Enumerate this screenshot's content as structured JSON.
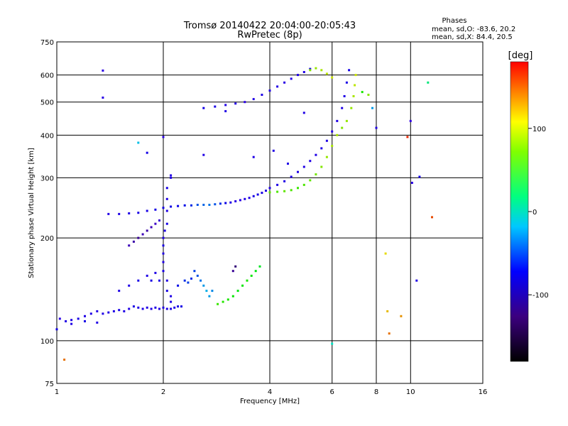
{
  "chart_data": {
    "type": "scatter",
    "title": "Tromsø 20140422 20:04:00-20:05:43",
    "subtitle": "RwPretec (8p)",
    "xlabel": "Frequency [MHz]",
    "ylabel": "Stationary phase Virtual Height [km]",
    "x_scale": "log2",
    "y_scale": "log",
    "xlim": [
      1,
      16
    ],
    "ylim": [
      75,
      750
    ],
    "x_ticks": [
      1,
      2,
      4,
      6,
      8,
      10,
      16
    ],
    "x_tick_labels": [
      "1",
      "2",
      "4",
      "6",
      "8",
      "10",
      "16"
    ],
    "y_ticks": [
      75,
      100,
      200,
      300,
      400,
      500,
      600,
      750
    ],
    "y_tick_labels": [
      "75",
      "100",
      "200",
      "300",
      "400",
      "500",
      "600",
      "750"
    ],
    "grid": true,
    "phases_title": "Phases",
    "phases_lines": [
      "mean, sd,O:  -83.6, 20.2",
      "mean, sd,X:  84.4, 20.5"
    ],
    "colorbar": {
      "label": "[deg]",
      "range": [
        -180,
        180
      ],
      "ticks": [
        100,
        0,
        -100
      ],
      "tick_labels": [
        "100",
        "0",
        "-100"
      ]
    },
    "series": [
      {
        "points": [
          [
            1.02,
            116,
            -110
          ],
          [
            1.06,
            114,
            -105
          ],
          [
            1.1,
            115,
            -100
          ],
          [
            1.15,
            116,
            -95
          ],
          [
            1.2,
            118,
            -100
          ],
          [
            1.25,
            120,
            -100
          ],
          [
            1.3,
            122,
            -105
          ],
          [
            1.35,
            120,
            -100
          ],
          [
            1.4,
            121,
            -105
          ],
          [
            1.45,
            122,
            -100
          ],
          [
            1.5,
            123,
            -95
          ],
          [
            1.55,
            122,
            -100
          ],
          [
            1.6,
            124,
            -100
          ],
          [
            1.65,
            126,
            -95
          ],
          [
            1.7,
            125,
            -100
          ],
          [
            1.75,
            124,
            -100
          ],
          [
            1.8,
            125,
            -105
          ],
          [
            1.85,
            124,
            -100
          ],
          [
            1.9,
            125,
            -100
          ],
          [
            1.95,
            124,
            -105
          ],
          [
            2.0,
            125,
            -100
          ],
          [
            2.05,
            124,
            -100
          ],
          [
            2.1,
            124,
            -95
          ],
          [
            2.15,
            125,
            -100
          ],
          [
            2.2,
            126,
            -95
          ],
          [
            2.25,
            126,
            -90
          ]
        ]
      },
      {
        "points": [
          [
            1.5,
            140,
            -100
          ],
          [
            1.6,
            145,
            -100
          ],
          [
            1.7,
            150,
            -95
          ],
          [
            1.8,
            155,
            -100
          ],
          [
            1.85,
            150,
            -95
          ],
          [
            1.9,
            158,
            -100
          ],
          [
            1.95,
            150,
            -100
          ],
          [
            2.0,
            160,
            -95
          ],
          [
            2.0,
            170,
            -100
          ],
          [
            2.0,
            180,
            -100
          ],
          [
            2.0,
            190,
            -95
          ],
          [
            2.0,
            200,
            -100
          ],
          [
            2.02,
            210,
            -100
          ],
          [
            2.05,
            220,
            -95
          ],
          [
            2.05,
            240,
            -100
          ],
          [
            2.05,
            260,
            -100
          ],
          [
            2.05,
            280,
            -95
          ],
          [
            2.1,
            300,
            -100
          ],
          [
            2.05,
            150,
            -100
          ],
          [
            2.05,
            140,
            -95
          ],
          [
            2.1,
            135,
            -100
          ],
          [
            2.1,
            130,
            -100
          ]
        ]
      },
      {
        "points": [
          [
            2.2,
            145,
            -70
          ],
          [
            2.3,
            150,
            -60
          ],
          [
            2.35,
            148,
            -55
          ],
          [
            2.4,
            152,
            -60
          ],
          [
            2.45,
            160,
            -55
          ],
          [
            2.5,
            155,
            -50
          ],
          [
            2.55,
            150,
            -40
          ],
          [
            2.6,
            145,
            -30
          ],
          [
            2.65,
            140,
            -25
          ],
          [
            2.7,
            135,
            -30
          ],
          [
            2.75,
            140,
            -35
          ]
        ]
      },
      {
        "points": [
          [
            2.85,
            128,
            70
          ],
          [
            2.95,
            130,
            65
          ],
          [
            3.05,
            132,
            60
          ],
          [
            3.15,
            135,
            55
          ],
          [
            3.25,
            140,
            50
          ],
          [
            3.35,
            145,
            55
          ],
          [
            3.45,
            150,
            60
          ],
          [
            3.55,
            155,
            55
          ],
          [
            3.65,
            160,
            50
          ],
          [
            3.75,
            165,
            45
          ],
          [
            3.15,
            160,
            -150
          ],
          [
            3.2,
            165,
            -160
          ]
        ]
      },
      {
        "points": [
          [
            1.4,
            235,
            -105
          ],
          [
            1.5,
            235,
            -100
          ],
          [
            1.6,
            236,
            -100
          ],
          [
            1.7,
            237,
            -95
          ],
          [
            1.8,
            240,
            -95
          ],
          [
            1.9,
            242,
            -90
          ],
          [
            2.0,
            245,
            -90
          ],
          [
            2.1,
            247,
            -85
          ],
          [
            2.2,
            248,
            -80
          ],
          [
            2.3,
            249,
            -70
          ],
          [
            2.4,
            249,
            -60
          ],
          [
            2.5,
            250,
            -50
          ],
          [
            2.6,
            250,
            -45
          ],
          [
            2.7,
            250,
            -40
          ],
          [
            2.8,
            251,
            -50
          ],
          [
            2.9,
            252,
            -60
          ],
          [
            3.0,
            253,
            -80
          ],
          [
            3.1,
            254,
            -100
          ],
          [
            3.2,
            256,
            -110
          ],
          [
            3.3,
            258,
            -110
          ],
          [
            3.4,
            260,
            -105
          ],
          [
            3.5,
            262,
            -100
          ],
          [
            3.6,
            265,
            -95
          ],
          [
            3.7,
            268,
            -90
          ],
          [
            3.8,
            271,
            -95
          ],
          [
            3.9,
            275,
            -100
          ],
          [
            4.0,
            280,
            -100
          ],
          [
            4.2,
            286,
            -100
          ],
          [
            4.4,
            293,
            -100
          ],
          [
            4.6,
            302,
            -100
          ],
          [
            4.8,
            312,
            -100
          ],
          [
            5.0,
            323,
            -100
          ],
          [
            5.2,
            336,
            -100
          ],
          [
            5.4,
            350,
            -100
          ],
          [
            5.6,
            366,
            -100
          ],
          [
            5.8,
            385,
            -100
          ],
          [
            6.0,
            410,
            -105
          ],
          [
            6.2,
            440,
            -100
          ],
          [
            6.4,
            480,
            -100
          ],
          [
            6.5,
            520,
            -100
          ],
          [
            6.6,
            570,
            -95
          ],
          [
            6.7,
            620,
            -90
          ]
        ]
      },
      {
        "points": [
          [
            1.6,
            190,
            -140
          ],
          [
            1.65,
            195,
            -145
          ],
          [
            1.7,
            200,
            -150
          ],
          [
            1.75,
            205,
            -140
          ],
          [
            1.8,
            210,
            -145
          ],
          [
            1.85,
            215,
            -140
          ],
          [
            1.9,
            220,
            -135
          ],
          [
            1.95,
            225,
            -130
          ]
        ]
      },
      {
        "points": [
          [
            4.0,
            272,
            80
          ],
          [
            4.2,
            273,
            75
          ],
          [
            4.4,
            274,
            80
          ],
          [
            4.6,
            276,
            75
          ],
          [
            4.8,
            280,
            70
          ],
          [
            5.0,
            286,
            75
          ],
          [
            5.2,
            295,
            80
          ],
          [
            5.4,
            307,
            85
          ],
          [
            5.6,
            323,
            90
          ],
          [
            5.8,
            345,
            95
          ],
          [
            6.0,
            372,
            100
          ],
          [
            6.2,
            400,
            100
          ],
          [
            6.4,
            420,
            90
          ],
          [
            6.6,
            440,
            95
          ],
          [
            6.8,
            480,
            95
          ],
          [
            6.9,
            520,
            100
          ],
          [
            6.95,
            560,
            105
          ],
          [
            7.0,
            600,
            110
          ]
        ]
      },
      {
        "points": [
          [
            2.6,
            480,
            -90
          ],
          [
            2.8,
            485,
            -95
          ],
          [
            3.0,
            490,
            -100
          ],
          [
            3.2,
            495,
            -105
          ],
          [
            3.4,
            500,
            -110
          ],
          [
            3.6,
            510,
            -105
          ],
          [
            3.8,
            525,
            -100
          ],
          [
            4.0,
            540,
            -100
          ],
          [
            4.2,
            555,
            -105
          ],
          [
            4.4,
            570,
            -110
          ],
          [
            4.6,
            585,
            -105
          ],
          [
            4.8,
            600,
            -100
          ],
          [
            5.0,
            612,
            -100
          ],
          [
            5.2,
            625,
            -95
          ]
        ]
      },
      {
        "points": [
          [
            5.2,
            620,
            90
          ],
          [
            5.4,
            628,
            95
          ],
          [
            5.6,
            620,
            100
          ],
          [
            5.8,
            605,
            105
          ],
          [
            6.0,
            590,
            110
          ]
        ]
      },
      {
        "points": [
          [
            1.0,
            108,
            -90
          ],
          [
            1.1,
            112,
            -100
          ],
          [
            1.2,
            114,
            -95
          ],
          [
            1.3,
            113,
            -100
          ],
          [
            1.35,
            618,
            -110
          ],
          [
            1.35,
            515,
            -110
          ],
          [
            1.7,
            380,
            -20
          ],
          [
            1.8,
            355,
            -90
          ],
          [
            2.0,
            395,
            -110
          ],
          [
            2.1,
            305,
            -100
          ],
          [
            2.6,
            350,
            -100
          ],
          [
            3.0,
            470,
            -100
          ],
          [
            3.6,
            345,
            -100
          ],
          [
            4.1,
            360,
            -100
          ],
          [
            4.5,
            330,
            -100
          ],
          [
            5.0,
            465,
            -100
          ],
          [
            7.3,
            535,
            60
          ],
          [
            7.6,
            525,
            90
          ],
          [
            7.8,
            480,
            -30
          ],
          [
            8.0,
            420,
            -100
          ],
          [
            8.5,
            180,
            120
          ],
          [
            8.6,
            122,
            130
          ],
          [
            8.7,
            105,
            150
          ],
          [
            9.8,
            395,
            170
          ],
          [
            10.0,
            440,
            -120
          ],
          [
            10.1,
            290,
            -110
          ],
          [
            10.4,
            150,
            -100
          ],
          [
            10.6,
            302,
            -90
          ],
          [
            11.2,
            570,
            20
          ],
          [
            11.5,
            230,
            160
          ],
          [
            1.05,
            88,
            150
          ],
          [
            6.0,
            98,
            0
          ],
          [
            9.4,
            118,
            140
          ]
        ]
      }
    ]
  }
}
